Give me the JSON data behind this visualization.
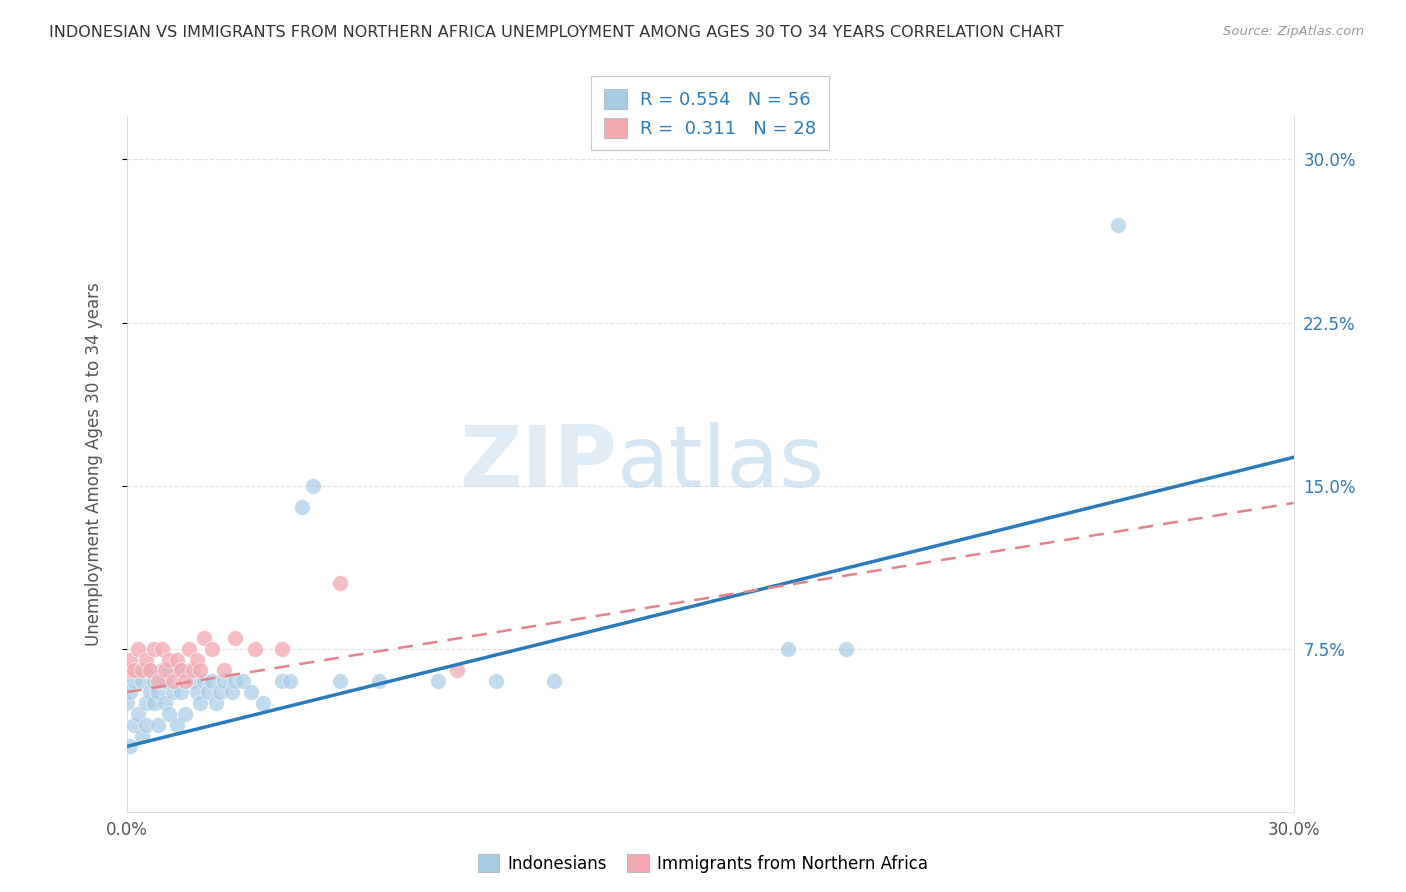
{
  "title": "INDONESIAN VS IMMIGRANTS FROM NORTHERN AFRICA UNEMPLOYMENT AMONG AGES 30 TO 34 YEARS CORRELATION CHART",
  "source": "Source: ZipAtlas.com",
  "ylabel": "Unemployment Among Ages 30 to 34 years",
  "xlabel": "",
  "xlim": [
    0.0,
    0.3
  ],
  "ylim": [
    0.0,
    0.32
  ],
  "xticks": [
    0.0,
    0.3
  ],
  "xticklabels": [
    "0.0%",
    "30.0%"
  ],
  "right_ytick_positions": [
    0.075,
    0.15,
    0.225,
    0.3
  ],
  "right_ytick_labels": [
    "7.5%",
    "15.0%",
    "22.5%",
    "30.0%"
  ],
  "blue_color": "#a8cce4",
  "pink_color": "#f4a9b0",
  "blue_line_color": "#2b7bba",
  "pink_line_color": "#e8808a",
  "legend_R1": "0.554",
  "legend_N1": "56",
  "legend_R2": "0.311",
  "legend_N2": "28",
  "watermark_zip": "ZIP",
  "watermark_atlas": "atlas",
  "indonesian_x": [
    0.0,
    0.001,
    0.001,
    0.002,
    0.002,
    0.003,
    0.003,
    0.004,
    0.004,
    0.005,
    0.005,
    0.005,
    0.006,
    0.006,
    0.007,
    0.007,
    0.008,
    0.008,
    0.009,
    0.009,
    0.01,
    0.01,
    0.011,
    0.011,
    0.012,
    0.013,
    0.013,
    0.014,
    0.015,
    0.016,
    0.017,
    0.018,
    0.019,
    0.02,
    0.021,
    0.022,
    0.023,
    0.024,
    0.025,
    0.027,
    0.028,
    0.03,
    0.032,
    0.035,
    0.04,
    0.042,
    0.045,
    0.048,
    0.055,
    0.065,
    0.08,
    0.095,
    0.11,
    0.17,
    0.185,
    0.255
  ],
  "indonesian_y": [
    0.05,
    0.03,
    0.055,
    0.04,
    0.06,
    0.045,
    0.065,
    0.035,
    0.06,
    0.05,
    0.065,
    0.04,
    0.055,
    0.065,
    0.05,
    0.06,
    0.04,
    0.055,
    0.06,
    0.065,
    0.05,
    0.06,
    0.045,
    0.065,
    0.055,
    0.04,
    0.065,
    0.055,
    0.045,
    0.065,
    0.06,
    0.055,
    0.05,
    0.06,
    0.055,
    0.06,
    0.05,
    0.055,
    0.06,
    0.055,
    0.06,
    0.06,
    0.055,
    0.05,
    0.06,
    0.06,
    0.14,
    0.15,
    0.06,
    0.06,
    0.06,
    0.06,
    0.06,
    0.075,
    0.075,
    0.27
  ],
  "northern_africa_x": [
    0.0,
    0.001,
    0.002,
    0.003,
    0.004,
    0.005,
    0.006,
    0.007,
    0.008,
    0.009,
    0.01,
    0.011,
    0.012,
    0.013,
    0.014,
    0.015,
    0.016,
    0.017,
    0.018,
    0.019,
    0.02,
    0.022,
    0.025,
    0.028,
    0.033,
    0.04,
    0.055,
    0.085
  ],
  "northern_africa_y": [
    0.065,
    0.07,
    0.065,
    0.075,
    0.065,
    0.07,
    0.065,
    0.075,
    0.06,
    0.075,
    0.065,
    0.07,
    0.06,
    0.07,
    0.065,
    0.06,
    0.075,
    0.065,
    0.07,
    0.065,
    0.08,
    0.075,
    0.065,
    0.08,
    0.075,
    0.075,
    0.105,
    0.065
  ],
  "blue_trend_x": [
    0.0,
    0.3
  ],
  "blue_trend_y": [
    0.03,
    0.163
  ],
  "pink_trend_x": [
    0.0,
    0.3
  ],
  "pink_trend_y": [
    0.055,
    0.142
  ],
  "background_color": "#ffffff",
  "grid_color": "#e0e0e0",
  "title_color": "#333333",
  "axis_label_color": "#555555",
  "tick_label_color": "#2b7bba"
}
